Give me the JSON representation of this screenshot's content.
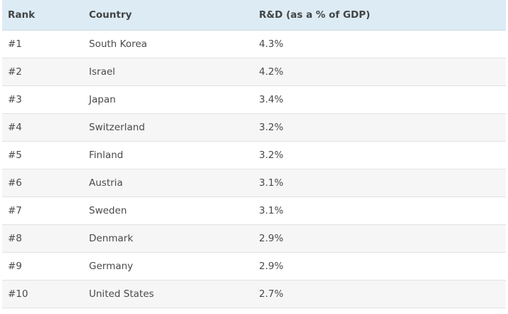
{
  "table": {
    "headers": [
      "Rank",
      "Country",
      "R&D (as a % of GDP)"
    ],
    "rows": [
      [
        "#1",
        "South Korea",
        "4.3%"
      ],
      [
        "#2",
        "Israel",
        "4.2%"
      ],
      [
        "#3",
        "Japan",
        "3.4%"
      ],
      [
        "#4",
        "Switzerland",
        "3.2%"
      ],
      [
        "#5",
        "Finland",
        "3.2%"
      ],
      [
        "#6",
        "Austria",
        "3.1%"
      ],
      [
        "#7",
        "Sweden",
        "3.1%"
      ],
      [
        "#8",
        "Denmark",
        "2.9%"
      ],
      [
        "#9",
        "Germany",
        "2.9%"
      ],
      [
        "#10",
        "United States",
        "2.7%"
      ]
    ]
  }
}
